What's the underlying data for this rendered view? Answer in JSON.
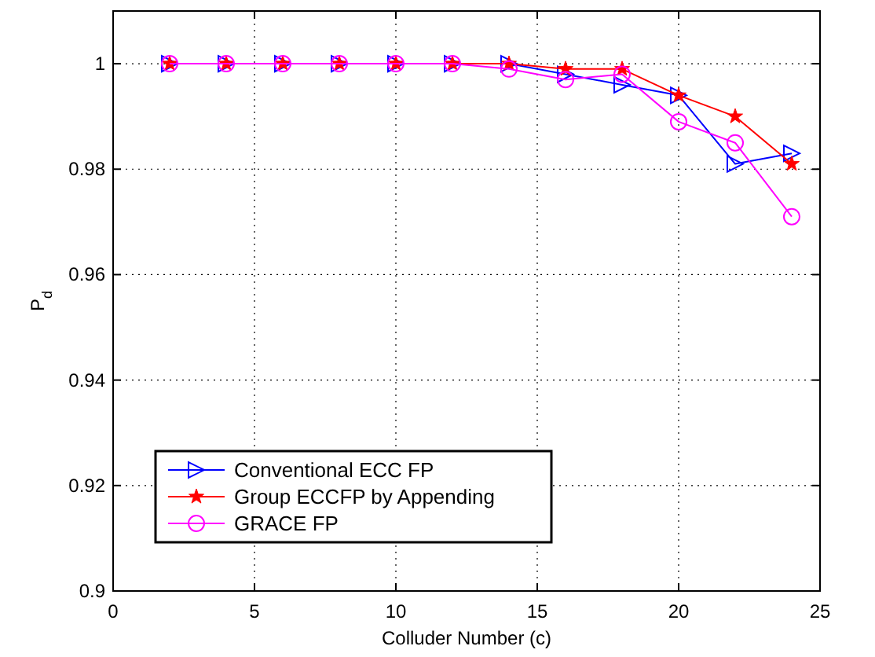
{
  "chart_data": {
    "type": "line",
    "xlabel": "Colluder Number (c)",
    "ylabel": "P$_{d}$",
    "x": [
      2,
      4,
      6,
      8,
      10,
      12,
      14,
      16,
      18,
      20,
      22,
      24
    ],
    "series": [
      {
        "name": "Conventional ECC FP",
        "color": "#0000ff",
        "marker": "triangle",
        "values": [
          1,
          1,
          1,
          1,
          1,
          1,
          1,
          0.998,
          0.996,
          0.994,
          0.981,
          0.983
        ]
      },
      {
        "name": "Group ECCFP by Appending",
        "color": "#ff0000",
        "marker": "star",
        "values": [
          1,
          1,
          1,
          1,
          1,
          1,
          1,
          0.999,
          0.999,
          0.994,
          0.99,
          0.981
        ]
      },
      {
        "name": "GRACE FP",
        "color": "#ff00ff",
        "marker": "circle",
        "values": [
          1,
          1,
          1,
          1,
          1,
          1,
          0.999,
          0.997,
          0.998,
          0.989,
          0.985,
          0.971
        ]
      }
    ],
    "xlim": [
      0,
      25
    ],
    "xticks": [
      0,
      5,
      10,
      15,
      20,
      25
    ],
    "ylim": [
      0.9,
      1.01
    ],
    "yticks": [
      0.9,
      0.92,
      0.94,
      0.96,
      0.98,
      1
    ],
    "grid": true,
    "legend": "bottom left",
    "line_style": "solid"
  }
}
